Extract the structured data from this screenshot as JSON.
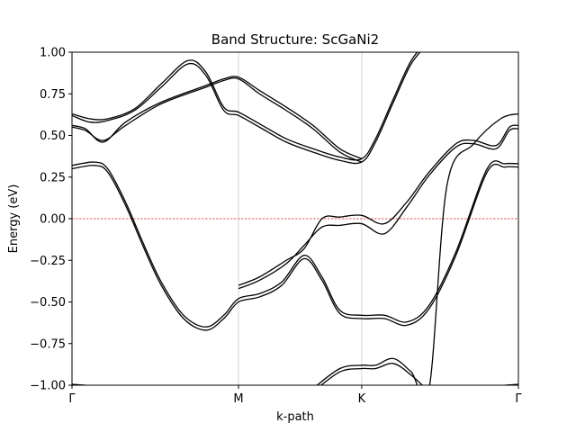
{
  "chart_data": {
    "type": "line",
    "title": "Band Structure: ScGaNi2",
    "xlabel": "k-path",
    "ylabel": "Energy (eV)",
    "xlim": [
      0,
      1
    ],
    "ylim": [
      -1.0,
      1.0
    ],
    "yticks": [
      -1.0,
      -0.75,
      -0.5,
      -0.25,
      0.0,
      0.25,
      0.5,
      0.75,
      1.0
    ],
    "ytick_labels": [
      "−1.00",
      "−0.75",
      "−0.50",
      "−0.25",
      "0.00",
      "0.25",
      "0.50",
      "0.75",
      "1.00"
    ],
    "kpoints": [
      {
        "label": "Γ",
        "x": 0.0
      },
      {
        "label": "M",
        "x": 0.373
      },
      {
        "label": "K",
        "x": 0.649
      },
      {
        "label": "Γ",
        "x": 1.0
      }
    ],
    "fermi_level": 0.0,
    "line_color": "#000000",
    "fermi_color": "#d62728",
    "series": [
      {
        "name": "band-1",
        "x": [
          0.0,
          0.04,
          0.08,
          0.14,
          0.2,
          0.26,
          0.3,
          0.34,
          0.373,
          0.42,
          0.48,
          0.54,
          0.6,
          0.649,
          0.68,
          0.72,
          0.76,
          0.8
        ],
        "y": [
          0.63,
          0.6,
          0.6,
          0.66,
          0.81,
          0.95,
          0.88,
          0.67,
          0.64,
          0.57,
          0.48,
          0.42,
          0.37,
          0.36,
          0.48,
          0.72,
          0.95,
          1.08
        ]
      },
      {
        "name": "band-2",
        "x": [
          0.0,
          0.04,
          0.08,
          0.14,
          0.2,
          0.26,
          0.3,
          0.34,
          0.373,
          0.42,
          0.48,
          0.54,
          0.6,
          0.649,
          0.68,
          0.72,
          0.76,
          0.8
        ],
        "y": [
          0.62,
          0.58,
          0.59,
          0.65,
          0.79,
          0.93,
          0.86,
          0.65,
          0.62,
          0.55,
          0.46,
          0.4,
          0.35,
          0.34,
          0.46,
          0.7,
          0.93,
          1.06
        ]
      },
      {
        "name": "band-3",
        "x": [
          0.0,
          0.03,
          0.07,
          0.12,
          0.2,
          0.3,
          0.34,
          0.373,
          0.42,
          0.48,
          0.54,
          0.6,
          0.649
        ],
        "y": [
          0.56,
          0.54,
          0.46,
          0.58,
          0.7,
          0.8,
          0.84,
          0.85,
          0.77,
          0.67,
          0.56,
          0.42,
          0.36
        ]
      },
      {
        "name": "band-4",
        "x": [
          0.0,
          0.03,
          0.07,
          0.12,
          0.2,
          0.3,
          0.34,
          0.373,
          0.42,
          0.48,
          0.54,
          0.6,
          0.649
        ],
        "y": [
          0.55,
          0.53,
          0.47,
          0.56,
          0.69,
          0.79,
          0.83,
          0.84,
          0.75,
          0.65,
          0.54,
          0.4,
          0.34
        ]
      },
      {
        "name": "band-5",
        "x": [
          0.0,
          0.05,
          0.08,
          0.12,
          0.16,
          0.2,
          0.25,
          0.3,
          0.34,
          0.373,
          0.42,
          0.47,
          0.52,
          0.56,
          0.6,
          0.649,
          0.7,
          0.75,
          0.8,
          0.86,
          0.93,
          0.97,
          1.0
        ],
        "y": [
          0.32,
          0.34,
          0.3,
          0.1,
          -0.15,
          -0.38,
          -0.58,
          -0.65,
          -0.58,
          -0.48,
          -0.45,
          -0.38,
          -0.22,
          -0.35,
          -0.55,
          -0.58,
          -0.58,
          -0.62,
          -0.52,
          -0.2,
          0.3,
          0.33,
          0.33
        ]
      },
      {
        "name": "band-6",
        "x": [
          0.0,
          0.05,
          0.08,
          0.12,
          0.16,
          0.2,
          0.25,
          0.3,
          0.34,
          0.373,
          0.42,
          0.47,
          0.52,
          0.56,
          0.6,
          0.649,
          0.7,
          0.75,
          0.8,
          0.86,
          0.93,
          0.97,
          1.0
        ],
        "y": [
          0.3,
          0.32,
          0.28,
          0.08,
          -0.17,
          -0.4,
          -0.6,
          -0.67,
          -0.6,
          -0.5,
          -0.47,
          -0.4,
          -0.24,
          -0.37,
          -0.57,
          -0.6,
          -0.6,
          -0.64,
          -0.54,
          -0.22,
          0.28,
          0.31,
          0.31
        ]
      },
      {
        "name": "band-7",
        "x": [
          0.373,
          0.42,
          0.48,
          0.52,
          0.56,
          0.6,
          0.649,
          0.7,
          0.75,
          0.8,
          0.86,
          0.9,
          0.95,
          0.98,
          1.0
        ],
        "y": [
          -0.4,
          -0.35,
          -0.25,
          -0.18,
          0.0,
          0.01,
          0.02,
          -0.03,
          0.1,
          0.28,
          0.45,
          0.47,
          0.44,
          0.55,
          0.56
        ]
      },
      {
        "name": "band-8",
        "x": [
          0.373,
          0.42,
          0.48,
          0.52,
          0.56,
          0.6,
          0.649,
          0.7,
          0.75,
          0.8,
          0.86,
          0.9,
          0.95,
          0.98,
          1.0
        ],
        "y": [
          -0.42,
          -0.37,
          -0.27,
          -0.16,
          -0.05,
          -0.04,
          -0.03,
          -0.09,
          0.07,
          0.26,
          0.43,
          0.45,
          0.42,
          0.53,
          0.54
        ]
      },
      {
        "name": "band-9",
        "x": [
          0.54,
          0.6,
          0.649,
          0.68,
          0.72,
          0.76,
          0.8,
          0.84,
          0.9,
          0.96,
          1.0
        ],
        "y": [
          -1.02,
          -0.9,
          -0.88,
          -0.88,
          -0.84,
          -0.92,
          -1.02,
          0.2,
          0.45,
          0.6,
          0.63
        ]
      },
      {
        "name": "band-10",
        "x": [
          0.54,
          0.6,
          0.649,
          0.68,
          0.72,
          0.76,
          0.8
        ],
        "y": [
          -1.04,
          -0.92,
          -0.9,
          -0.9,
          -0.87,
          -0.94,
          -1.04
        ]
      },
      {
        "name": "band-11",
        "x": [
          0.0,
          0.03
        ],
        "y": [
          -0.995,
          -1.0
        ]
      },
      {
        "name": "band-12",
        "x": [
          0.97,
          1.0
        ],
        "y": [
          -1.0,
          -0.995
        ]
      }
    ]
  }
}
